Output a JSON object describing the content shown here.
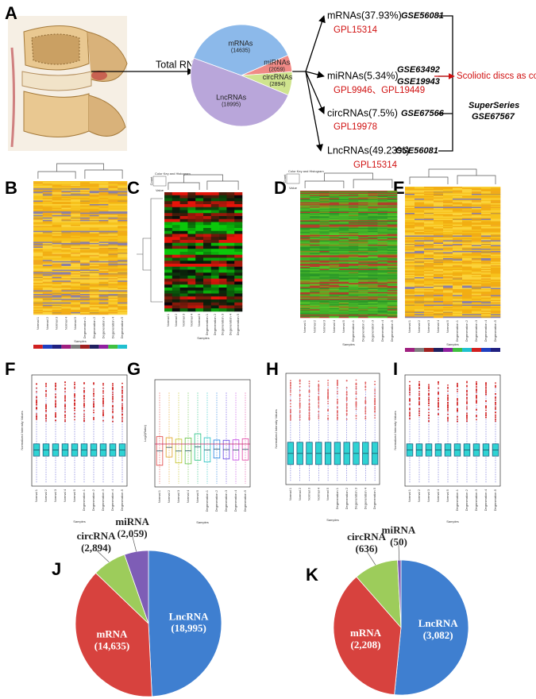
{
  "figure": {
    "panel_labels": [
      "A",
      "B",
      "C",
      "D",
      "E",
      "F",
      "G",
      "H",
      "I",
      "J",
      "K"
    ],
    "panel_a": {
      "input_label": "Total RNA",
      "rows": [
        {
          "name": "mRNAs(37.93%)",
          "series_ids": [
            "GSE56081"
          ],
          "platform": "GPL15314"
        },
        {
          "name": "miRNAs(5.34%)",
          "series_ids": [
            "GSE63492",
            "GSE19943"
          ],
          "platform": "GPL9946、GPL19449"
        },
        {
          "name": "circRNAs(7.5%)",
          "series_ids": [
            "GSE67566"
          ],
          "platform": "GPL19978"
        },
        {
          "name": "LncRNAs(49.23%)",
          "series_ids": [
            "GSE56081"
          ],
          "platform": "GPL15314"
        }
      ],
      "control_note": "Scoliotic discs as control",
      "superseries": {
        "label": "SuperSeries",
        "id": "GSE67567"
      }
    },
    "heatmap_axis_label": "Samples",
    "color_key": "Color Key and Histogram",
    "count_label": "Count",
    "value_label": "Value",
    "samples": [
      "Normal 1",
      "Normal 2",
      "Normal 3",
      "Normal 4",
      "Normal 5",
      "Degeneration 1",
      "Degeneration 2",
      "Degeneration 3",
      "Degeneration 4",
      "Degeneration 5"
    ],
    "boxplot_axes": [
      "Normalized Intensity Values",
      "Log2(Ratio)",
      "Normalized Intensity Values",
      "Normalized Intensity Values"
    ]
  },
  "chart_data": [
    {
      "type": "pie",
      "categories": [
        "mRNAs",
        "miRNAs",
        "circRNAs",
        "LncRNAs"
      ],
      "values": [
        14635,
        2059,
        2894,
        18995
      ],
      "value_labels": [
        "(14635)",
        "(2059)",
        "(2894)",
        "(18995)"
      ],
      "colors": [
        "#8cb9ea",
        "#f08a86",
        "#cfe48e",
        "#b9a6da"
      ]
    },
    {
      "type": "pie",
      "categories": [
        "LncRNA",
        "mRNA",
        "circRNA",
        "miRNA"
      ],
      "values": [
        18995,
        14635,
        2894,
        2059
      ],
      "value_labels": [
        "(18,995)",
        "(14,635)",
        "(2,894)",
        "(2,059)"
      ],
      "colors": [
        "#3f7fd0",
        "#d7423e",
        "#9dcc5b",
        "#7e5db6"
      ]
    },
    {
      "type": "pie",
      "categories": [
        "LncRNA",
        "mRNA",
        "circRNA",
        "miRNA"
      ],
      "values": [
        3082,
        2208,
        636,
        50
      ],
      "value_labels": [
        "(3,082)",
        "(2,208)",
        "(636)",
        "(50)"
      ],
      "colors": [
        "#3f7fd0",
        "#d7423e",
        "#9dcc5b",
        "#7e5db6"
      ]
    }
  ]
}
